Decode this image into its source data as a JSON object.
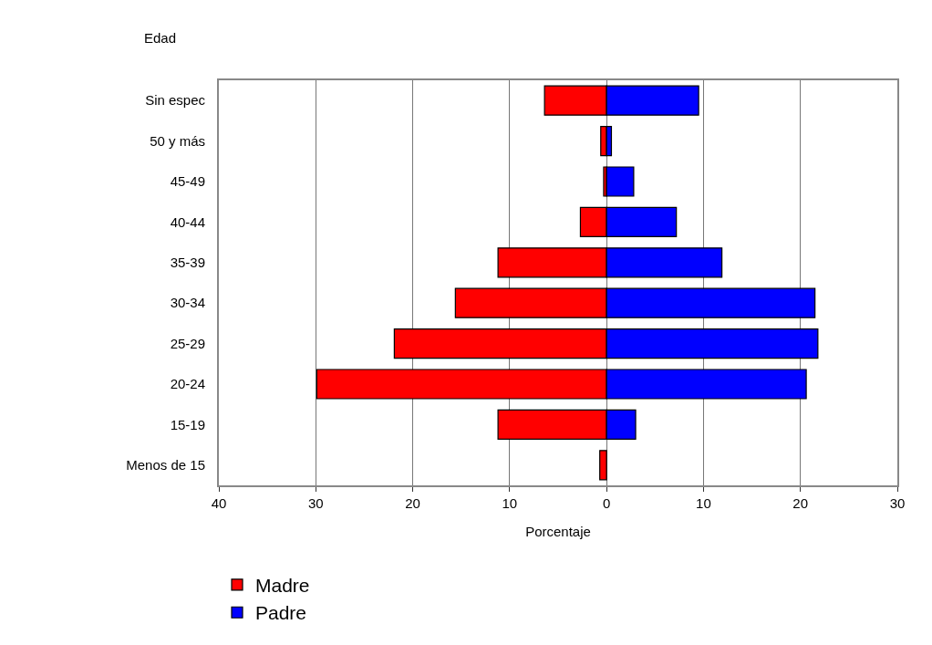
{
  "chart_data": {
    "type": "bar",
    "orientation": "horizontal",
    "xlabel": "Porcentaje",
    "ylabel": "Edad",
    "categories": [
      "Sin espec",
      "50 y más",
      "45-49",
      "40-44",
      "35-39",
      "30-34",
      "25-29",
      "20-24",
      "15-19",
      "Menos de 15"
    ],
    "series": [
      {
        "name": "Madre",
        "color": "#ff0000",
        "values": [
          -6.4,
          -0.6,
          -0.3,
          -2.7,
          -11.2,
          -15.6,
          -21.9,
          -29.9,
          -11.2,
          -0.7
        ]
      },
      {
        "name": "Padre",
        "color": "#0000ff",
        "values": [
          9.5,
          0.5,
          2.8,
          7.2,
          11.9,
          21.5,
          21.8,
          20.6,
          3.0,
          null
        ]
      }
    ],
    "xlim": [
      -40,
      30
    ],
    "xticks": [
      {
        "value": -40,
        "label": "40"
      },
      {
        "value": -30,
        "label": "30"
      },
      {
        "value": -20,
        "label": "20"
      },
      {
        "value": -10,
        "label": "10"
      },
      0,
      10,
      20,
      30
    ],
    "grid": "x",
    "legend": "bottom",
    "stacked": true
  }
}
